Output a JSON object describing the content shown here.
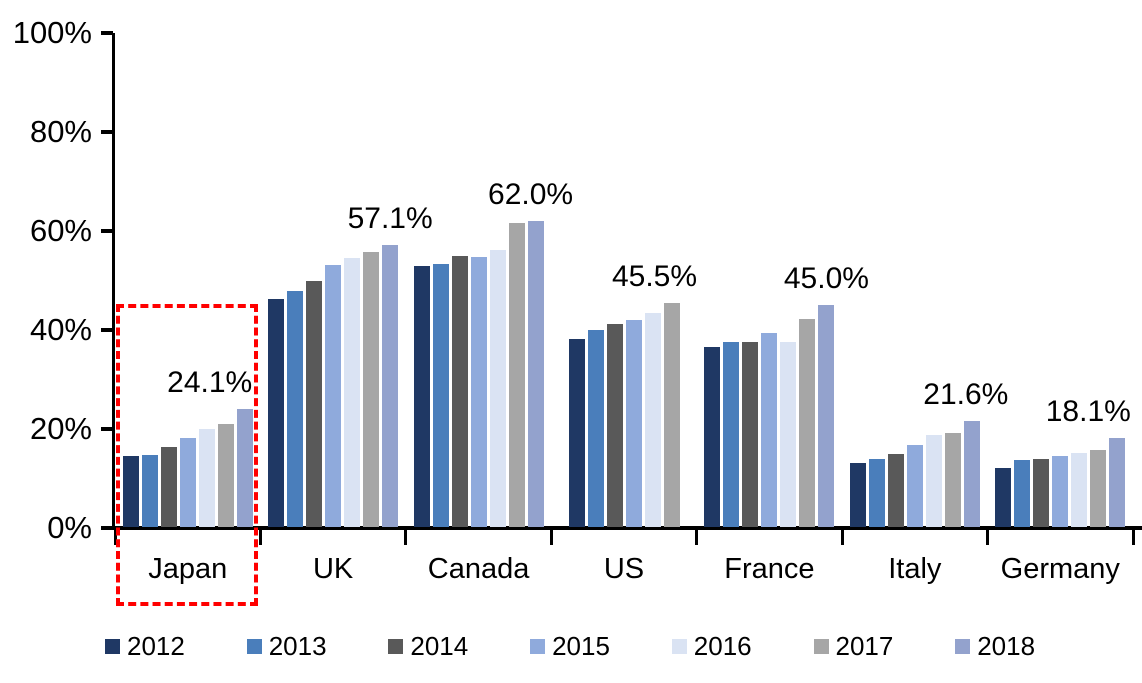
{
  "chart_data": {
    "type": "bar",
    "title": "",
    "xlabel": "",
    "ylabel": "",
    "categories": [
      "Japan",
      "UK",
      "Canada",
      "US",
      "France",
      "Italy",
      "Germany"
    ],
    "series": [
      {
        "name": "2012",
        "color": "#1F3864",
        "values": [
          14.5,
          46.3,
          53.0,
          38.1,
          36.5,
          13.1,
          12.2
        ]
      },
      {
        "name": "2013",
        "color": "#4A7EBB",
        "values": [
          14.8,
          47.8,
          53.4,
          39.9,
          37.6,
          14.0,
          13.7
        ]
      },
      {
        "name": "2014",
        "color": "#595959",
        "values": [
          16.4,
          49.8,
          54.9,
          41.2,
          37.5,
          15.0,
          14.0
        ]
      },
      {
        "name": "2015",
        "color": "#8FAADC",
        "values": [
          18.1,
          53.1,
          54.7,
          42.1,
          39.3,
          16.7,
          14.5
        ]
      },
      {
        "name": "2016",
        "color": "#DAE3F3",
        "values": [
          19.9,
          54.6,
          56.1,
          43.5,
          37.5,
          18.7,
          15.1
        ]
      },
      {
        "name": "2017",
        "color": "#A6A6A6",
        "values": [
          21.0,
          55.7,
          61.6,
          45.5,
          42.3,
          19.1,
          15.7
        ]
      },
      {
        "name": "2018",
        "color": "#93A2CD",
        "values": [
          24.1,
          57.1,
          62.0,
          null,
          45.0,
          21.6,
          18.1
        ]
      }
    ],
    "data_labels": [
      {
        "category": "Japan",
        "text": "24.1%",
        "dx": -35
      },
      {
        "category": "UK",
        "text": "57.1%",
        "dx": 0
      },
      {
        "category": "Canada",
        "text": "62.0%",
        "dx": -5
      },
      {
        "category": "US",
        "text": "45.5%",
        "dx": -17
      },
      {
        "category": "France",
        "text": "45.0%",
        "dx": 0
      },
      {
        "category": "Italy",
        "text": "21.6%",
        "dx": -6
      },
      {
        "category": "Germany",
        "text": "18.1%",
        "dx": -29
      }
    ],
    "ylim": [
      0,
      100
    ],
    "ytick_values": [
      0,
      20,
      40,
      60,
      80,
      100
    ],
    "ytick_labels": [
      "0%",
      "20%",
      "40%",
      "60%",
      "80%",
      "100%"
    ],
    "grid": false,
    "legend_position": "bottom",
    "legend_entries": [
      "2012",
      "2013",
      "2014",
      "2015",
      "2016",
      "2017",
      "2018"
    ],
    "highlight": {
      "category": "Japan",
      "shape": "dashed-rectangle",
      "color": "#FF0000"
    },
    "axis_color": "#000000"
  }
}
